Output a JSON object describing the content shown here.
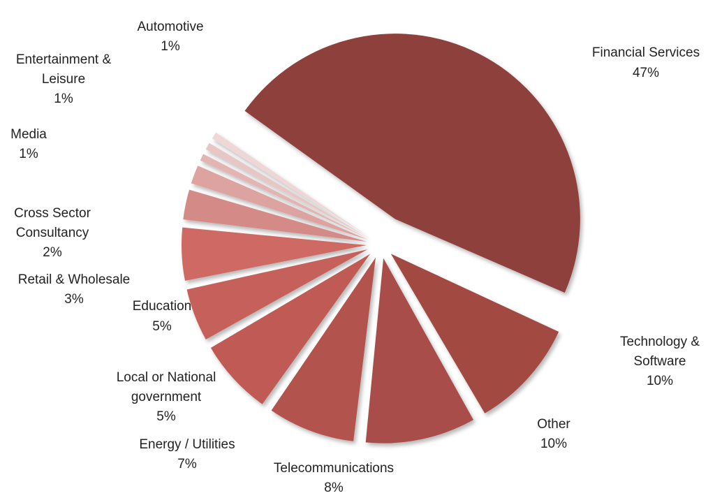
{
  "chart_data": {
    "type": "pie",
    "exploded": true,
    "slices": [
      {
        "label": "Financial Services",
        "value": 47,
        "percent_label": "47%",
        "color": "#8e403c"
      },
      {
        "label": "Technology & Software",
        "value": 10,
        "percent_label": "10%",
        "color": "#a24843"
      },
      {
        "label": "Other",
        "value": 10,
        "percent_label": "10%",
        "color": "#a84d48"
      },
      {
        "label": "Telecommunications",
        "value": 8,
        "percent_label": "8%",
        "color": "#b2524d"
      },
      {
        "label": "Energy / Utilities",
        "value": 7,
        "percent_label": "7%",
        "color": "#bf5a55"
      },
      {
        "label": "Local or National government",
        "value": 5,
        "percent_label": "5%",
        "color": "#c6605a"
      },
      {
        "label": "Education",
        "value": 5,
        "percent_label": "5%",
        "color": "#ce6a64"
      },
      {
        "label": "Retail & Wholesale",
        "value": 3,
        "percent_label": "3%",
        "color": "#d48b88"
      },
      {
        "label": "Cross Sector Consultancy",
        "value": 2,
        "percent_label": "2%",
        "color": "#dca3a1"
      },
      {
        "label": "Media",
        "value": 1,
        "percent_label": "1%",
        "color": "#e2b5b3"
      },
      {
        "label": "Entertainment & Leisure",
        "value": 1,
        "percent_label": "1%",
        "color": "#e8c6c4"
      },
      {
        "label": "Automotive",
        "value": 1,
        "percent_label": "1%",
        "color": "#eed7d6"
      }
    ]
  }
}
